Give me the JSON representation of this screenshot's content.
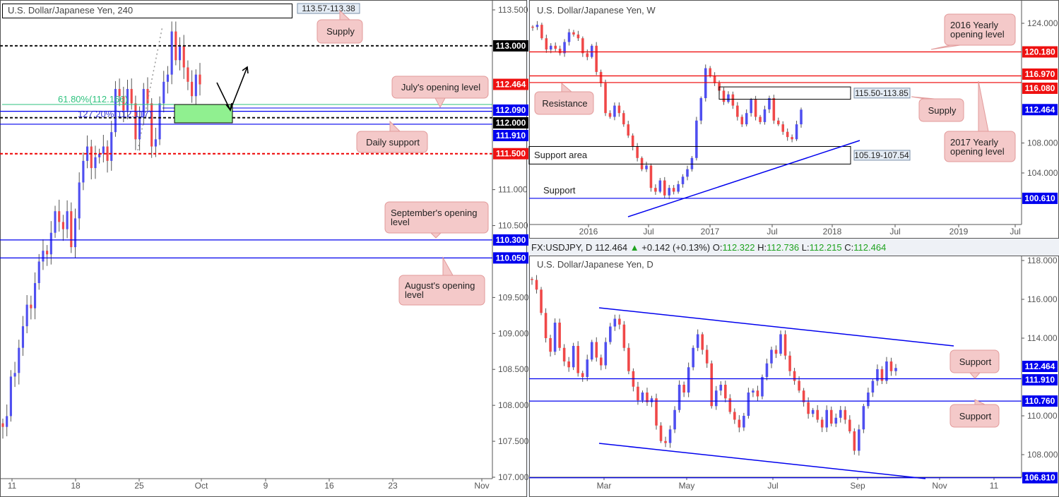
{
  "colors": {
    "up": "#4f4ff0",
    "down": "#f04848",
    "blue_level": "#0000ee",
    "red_level": "#ee0000",
    "callout_fill": "#f4c9c9",
    "callout_stroke": "#e29a9a",
    "zone_fill": "#90f090",
    "fib_green": "#2ec27e"
  },
  "header": {
    "symbol": "FX:USDJPY, D",
    "last": "112.464",
    "change_icon": "triangle-up-icon",
    "change": "+0.142 (+0.13%)",
    "o_label": "O:",
    "o": "112.322",
    "h_label": "H:",
    "h": "112.736",
    "l_label": "L:",
    "l": "112.215",
    "c_label": "C:",
    "c": "112.464"
  },
  "chart_data": [
    {
      "type": "candlestick",
      "title": "U.S. Dollar/Japanese Yen, 240",
      "ylim": [
        107.0,
        113.6
      ],
      "y_ticks": [
        "113.500",
        "111.000",
        "110.500",
        "109.500",
        "109.000",
        "108.500",
        "108.000",
        "107.500",
        "107.000"
      ],
      "y_tick_values": [
        113.5,
        111.0,
        110.5,
        109.5,
        109.0,
        108.5,
        108.0,
        107.5,
        107.0
      ],
      "x_ticks": [
        "11",
        "18",
        "25",
        "Oct",
        "9",
        "16",
        "23",
        "Nov"
      ],
      "closes": [
        107.7,
        107.85,
        108.4,
        108.45,
        108.8,
        109.1,
        109.4,
        109.35,
        109.7,
        110.0,
        110.15,
        110.1,
        110.4,
        110.7,
        110.55,
        110.45,
        110.7,
        110.2,
        110.6,
        111.1,
        111.4,
        111.6,
        111.3,
        111.45,
        111.5,
        111.6,
        111.4,
        111.8,
        112.4,
        112.3,
        112.1,
        112.4,
        112.2,
        111.7,
        112.0,
        112.4,
        112.2,
        111.6,
        111.7,
        112.2,
        112.5,
        112.6,
        113.2,
        112.8,
        113.0,
        112.7,
        112.5,
        112.3,
        112.6,
        112.464
      ],
      "levels": [
        {
          "value": 113.0,
          "label": "113.000",
          "style": "dashed-black"
        },
        {
          "value": 112.464,
          "label": "112.464",
          "style": "price-red"
        },
        {
          "value": 112.09,
          "label": "112.090",
          "style": "blue"
        },
        {
          "value": 112.0,
          "label": "112.000",
          "style": "dashed-black"
        },
        {
          "value": 111.91,
          "label": "111.910",
          "style": "blue"
        },
        {
          "value": 111.5,
          "label": "111.500",
          "style": "dashed-red"
        },
        {
          "value": 110.3,
          "label": "110.300",
          "style": "blue"
        },
        {
          "value": 110.05,
          "label": "110.050",
          "style": "blue"
        }
      ],
      "fib_labels": [
        "61.80%(112.166)",
        "127.20%(112.117)"
      ],
      "zone_label": "113.57-113.38",
      "callouts": [
        "Supply",
        "July's opening level",
        "Daily support",
        "September's opening level",
        "August's opening level"
      ]
    },
    {
      "type": "candlestick",
      "title": "U.S. Dollar/Japanese Yen, W",
      "ylim": [
        96.0,
        126.0
      ],
      "y_ticks": [
        "124.000",
        "108.000",
        "104.000"
      ],
      "y_tick_values": [
        124,
        108,
        104
      ],
      "x_ticks": [
        "2016",
        "Jul",
        "2017",
        "Jul",
        "2018",
        "Jul",
        "2019",
        "Jul"
      ],
      "closes": [
        123.5,
        123.8,
        122,
        120.5,
        121,
        120.6,
        120,
        121.5,
        122.8,
        122.5,
        122,
        120,
        119.5,
        121,
        117.5,
        116,
        112,
        111.5,
        113,
        112,
        110.5,
        109,
        107.5,
        106,
        104.5,
        105,
        102,
        101.5,
        103,
        101,
        102,
        101.5,
        102.5,
        103.5,
        104.5,
        106,
        111,
        114,
        118,
        117,
        116,
        115,
        113.5,
        114.5,
        113,
        111.5,
        110.5,
        112,
        113.8,
        111.5,
        110.8,
        112.5,
        114,
        111,
        110.5,
        109.5,
        108.8,
        108.5,
        110.5,
        112.464
      ],
      "levels": [
        {
          "value": 120.18,
          "label": "120.180",
          "style": "red"
        },
        {
          "value": 116.97,
          "label": "116.970",
          "style": "red"
        },
        {
          "value": 116.08,
          "label": "116.080",
          "style": "red"
        },
        {
          "value": 112.464,
          "label": "112.464",
          "style": "price-blue"
        },
        {
          "value": 100.61,
          "label": "100.610",
          "style": "blue"
        }
      ],
      "zones": [
        {
          "label": "115.50-113.85",
          "top": 115.5,
          "bottom": 113.85
        },
        {
          "label": "105.19-107.54",
          "top": 107.54,
          "bottom": 105.19
        }
      ],
      "texts": {
        "support_area": "Support area",
        "support": "Support"
      },
      "callouts": [
        "2016 Yearly opening level",
        "Resistance",
        "Supply",
        "2017 Yearly opening level"
      ]
    },
    {
      "type": "candlestick",
      "title": "U.S. Dollar/Japanese Yen, D",
      "ylim": [
        106.8,
        118.2
      ],
      "y_ticks": [
        "118.000",
        "116.000",
        "114.000",
        "110.000",
        "108.000"
      ],
      "y_tick_values": [
        118,
        116,
        114,
        110,
        108
      ],
      "x_ticks": [
        "Mar",
        "May",
        "Jul",
        "Sep",
        "Nov",
        "11"
      ],
      "closes": [
        117.0,
        116.5,
        115.3,
        114.0,
        113.3,
        114.8,
        113.5,
        112.8,
        112.5,
        113.6,
        112.2,
        112.0,
        112.9,
        113.8,
        113.0,
        112.6,
        113.8,
        114.6,
        115.0,
        114.7,
        113.5,
        112.3,
        111.5,
        110.8,
        111.2,
        110.7,
        110.9,
        109.5,
        108.7,
        108.6,
        109.3,
        110.3,
        111.6,
        111.2,
        112.5,
        113.5,
        114.2,
        113.4,
        112.7,
        110.5,
        111.3,
        111.6,
        110.9,
        110.2,
        109.8,
        109.4,
        110.0,
        111.2,
        111.3,
        111.0,
        112.0,
        112.7,
        113.4,
        113.2,
        114.2,
        113.1,
        112.3,
        111.8,
        111.3,
        110.7,
        110.1,
        110.3,
        109.8,
        109.4,
        110.3,
        109.6,
        109.9,
        110.3,
        109.8,
        109.2,
        108.2,
        109.3,
        110.5,
        111.2,
        111.8,
        112.4,
        111.8,
        112.8,
        112.3,
        112.464
      ],
      "levels": [
        {
          "value": 112.464,
          "label": "112.464",
          "style": "price-blue"
        },
        {
          "value": 111.91,
          "label": "111.910",
          "style": "blue"
        },
        {
          "value": 110.76,
          "label": "110.760",
          "style": "blue"
        },
        {
          "value": 106.81,
          "label": "106.810",
          "style": "blue"
        }
      ],
      "callouts": [
        "Support",
        "Support"
      ]
    }
  ]
}
